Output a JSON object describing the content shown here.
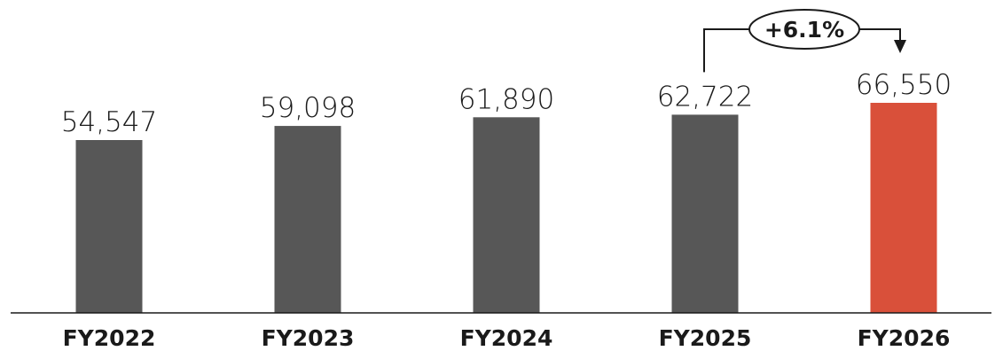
{
  "chart_data": {
    "type": "bar",
    "categories": [
      "FY2022",
      "FY2023",
      "FY2024",
      "FY2025",
      "FY2026"
    ],
    "values": [
      54547,
      59098,
      61890,
      62722,
      66550
    ],
    "value_labels": [
      "54,547",
      "59,098",
      "61,890",
      "62,722",
      "66,550"
    ],
    "title": "",
    "xlabel": "",
    "ylabel": "",
    "ylim": [
      0,
      71000
    ],
    "grid": false,
    "legend": "none",
    "colors": {
      "default": "#575757",
      "highlight": "#d9503a",
      "text": "#1a1a1a",
      "axis": "#1a1a1a"
    },
    "highlight_index": 4,
    "annotation": {
      "text": "+6.1%",
      "from": "FY2025",
      "to": "FY2026"
    }
  }
}
